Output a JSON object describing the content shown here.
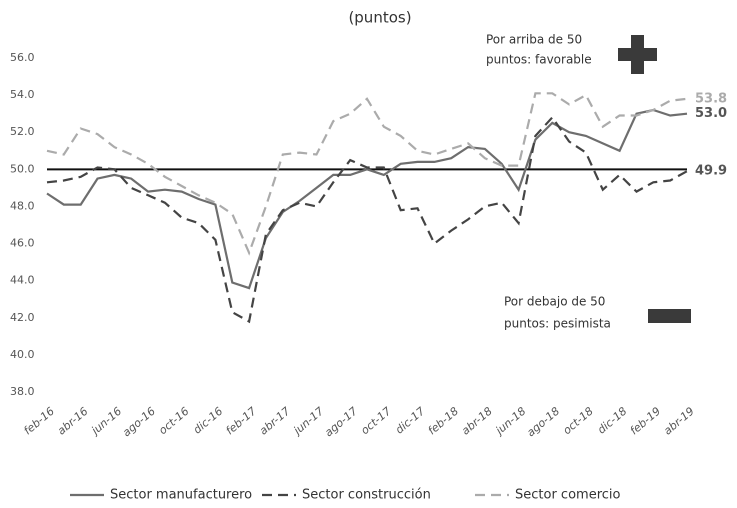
{
  "chart_data": {
    "type": "line",
    "title": "(puntos)",
    "categories": [
      "feb-16",
      null,
      "abr-16",
      null,
      "jun-16",
      null,
      "ago-16",
      null,
      "oct-16",
      null,
      "dic-16",
      null,
      "feb-17",
      null,
      "abr-17",
      null,
      "jun-17",
      null,
      "ago-17",
      null,
      "oct-17",
      null,
      "dic-17",
      null,
      "feb-18",
      null,
      "abr-18",
      null,
      "jun-18",
      null,
      "ago-18",
      null,
      "oct-18",
      null,
      "dic-18",
      null,
      "feb-19",
      null,
      "abr-19"
    ],
    "series": [
      {
        "name": "Sector manufacturero",
        "color": "#6e6e6e",
        "dash": "solid",
        "values": [
          48.7,
          48.1,
          48.1,
          49.5,
          49.7,
          49.5,
          48.8,
          48.9,
          48.8,
          48.4,
          48.1,
          43.9,
          43.6,
          46.3,
          47.7,
          48.3,
          49.0,
          49.7,
          49.7,
          50.0,
          49.7,
          50.3,
          50.4,
          50.4,
          50.6,
          51.2,
          51.1,
          50.3,
          48.9,
          51.6,
          52.5,
          52.0,
          51.8,
          51.4,
          51.0,
          53.0,
          53.2,
          52.9,
          53.0
        ],
        "value_labels": [
          null,
          null,
          null,
          null,
          null,
          null,
          null,
          null,
          null,
          null,
          null,
          null,
          null,
          null,
          null,
          null,
          null,
          null,
          null,
          null,
          null,
          null,
          null,
          null,
          null,
          null,
          null,
          null,
          null,
          null,
          null,
          null,
          null,
          null,
          null,
          null,
          null,
          null,
          "53.0"
        ]
      },
      {
        "name": "Sector construcción",
        "color": "#444444",
        "dash": "dashed",
        "values": [
          49.3,
          49.4,
          49.6,
          50.1,
          50.0,
          49.0,
          48.6,
          48.2,
          47.4,
          47.1,
          46.2,
          42.3,
          41.8,
          46.5,
          47.8,
          48.2,
          48.0,
          49.3,
          50.5,
          50.1,
          50.1,
          47.8,
          47.9,
          46.0,
          46.7,
          47.3,
          48.0,
          48.2,
          47.1,
          51.8,
          52.8,
          51.5,
          50.9,
          48.9,
          49.7,
          48.8,
          49.3,
          49.4,
          49.9
        ],
        "value_labels": [
          null,
          null,
          null,
          null,
          null,
          null,
          null,
          null,
          null,
          null,
          null,
          null,
          null,
          null,
          null,
          null,
          null,
          null,
          null,
          null,
          null,
          null,
          null,
          null,
          null,
          null,
          null,
          null,
          null,
          null,
          null,
          null,
          null,
          null,
          null,
          null,
          null,
          null,
          "49.9"
        ]
      },
      {
        "name": "Sector comercio",
        "color": "#ababab",
        "dash": "dashed",
        "values": [
          51.0,
          50.8,
          52.2,
          51.9,
          51.2,
          50.8,
          50.3,
          49.6,
          49.1,
          48.6,
          48.2,
          47.6,
          45.5,
          48.0,
          50.8,
          50.9,
          50.8,
          52.6,
          53.0,
          53.8,
          52.3,
          51.8,
          51.0,
          50.8,
          51.1,
          51.4,
          50.6,
          50.2,
          50.2,
          54.1,
          54.1,
          53.5,
          54.0,
          52.3,
          52.9,
          52.9,
          53.2,
          53.7,
          53.8
        ],
        "value_labels": [
          null,
          null,
          null,
          null,
          null,
          null,
          null,
          null,
          null,
          null,
          null,
          null,
          null,
          null,
          null,
          null,
          null,
          null,
          null,
          null,
          null,
          null,
          null,
          null,
          null,
          null,
          null,
          null,
          null,
          null,
          null,
          null,
          null,
          null,
          null,
          null,
          null,
          null,
          "53.8"
        ]
      }
    ],
    "ylim": [
      38,
      56
    ],
    "yticks": [
      {
        "value": 38,
        "label": "38.0"
      },
      {
        "value": 40,
        "label": "40.0"
      },
      {
        "value": 42,
        "label": "42.0"
      },
      {
        "value": 44,
        "label": "44.0"
      },
      {
        "value": 46,
        "label": "46.0"
      },
      {
        "value": 48,
        "label": "48.0"
      },
      {
        "value": 50,
        "label": "50.0"
      },
      {
        "value": 52,
        "label": "52.0"
      },
      {
        "value": 54,
        "label": "54.0"
      },
      {
        "value": 56,
        "label": "56.0"
      }
    ],
    "reference_line": 50,
    "annotations": [
      [
        "Por arriba de 50",
        "puntos: favorable"
      ],
      [
        "Por debajo de 50",
        "puntos: pesimista"
      ]
    ],
    "grid": false,
    "legend": "bottom"
  }
}
